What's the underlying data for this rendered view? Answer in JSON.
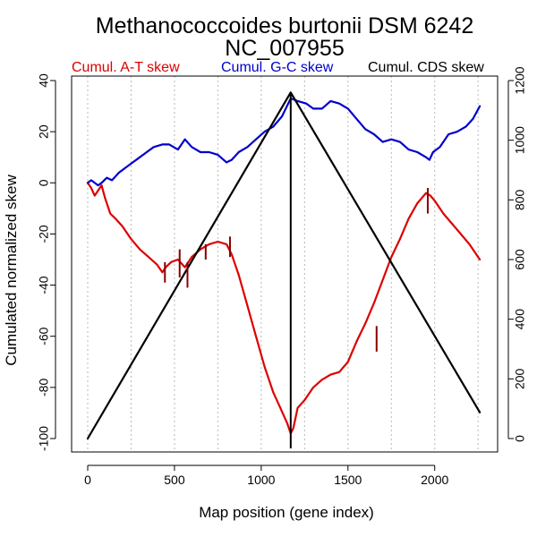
{
  "chart_data": {
    "type": "line",
    "title": "Methanococcoides burtonii DSM 6242",
    "subtitle": "NC_007955",
    "xlabel": "Map position (gene index)",
    "ylabel": "Cumulated normalized skew",
    "xlim": [
      0,
      2280
    ],
    "ylim": [
      -100,
      40
    ],
    "y2lim": [
      0,
      1200
    ],
    "x_ticks": [
      0,
      500,
      1000,
      1500,
      2000
    ],
    "y_ticks": [
      -100,
      -80,
      -60,
      -40,
      -20,
      0,
      20,
      40
    ],
    "y2_ticks": [
      0,
      200,
      400,
      600,
      800,
      1000,
      1200
    ],
    "vline_x": 1170,
    "legend": [
      {
        "label": "Cumul. A-T skew",
        "color": "#dd0000"
      },
      {
        "label": "Cumul. G-C skew",
        "color": "#0000cc"
      },
      {
        "label": "Cumul. CDS skew",
        "color": "#000000"
      }
    ],
    "series": [
      {
        "name": "Cumul. A-T skew",
        "axis": "left",
        "color": "#dd0000",
        "x": [
          0,
          20,
          40,
          60,
          80,
          100,
          130,
          160,
          200,
          250,
          300,
          350,
          400,
          430,
          450,
          480,
          520,
          560,
          600,
          650,
          700,
          750,
          800,
          830,
          870,
          920,
          970,
          1020,
          1070,
          1110,
          1150,
          1170,
          1185,
          1210,
          1250,
          1300,
          1350,
          1400,
          1450,
          1500,
          1550,
          1600,
          1650,
          1700,
          1750,
          1800,
          1850,
          1900,
          1950,
          1975,
          2000,
          2050,
          2100,
          2150,
          2200,
          2260
        ],
        "values": [
          0,
          -2,
          -5,
          -3,
          -1,
          -6,
          -12,
          -14,
          -17,
          -22,
          -26,
          -29,
          -32,
          -35,
          -33,
          -31,
          -30,
          -33,
          -29,
          -26,
          -24,
          -23,
          -24,
          -28,
          -36,
          -48,
          -60,
          -72,
          -82,
          -88,
          -94,
          -98,
          -96,
          -88,
          -85,
          -80,
          -77,
          -75,
          -74,
          -70,
          -62,
          -55,
          -47,
          -38,
          -29,
          -22,
          -14,
          -8,
          -4,
          -5,
          -7,
          -12,
          -16,
          -20,
          -24,
          -30
        ]
      },
      {
        "name": "Cumul. G-C skew",
        "axis": "left",
        "color": "#0000cc",
        "x": [
          0,
          20,
          40,
          60,
          80,
          110,
          140,
          180,
          220,
          260,
          300,
          340,
          380,
          430,
          470,
          520,
          560,
          600,
          650,
          700,
          750,
          800,
          830,
          870,
          920,
          970,
          1020,
          1070,
          1120,
          1170,
          1210,
          1260,
          1300,
          1350,
          1400,
          1450,
          1500,
          1550,
          1600,
          1650,
          1700,
          1750,
          1800,
          1850,
          1900,
          1950,
          1970,
          1990,
          2030,
          2080,
          2130,
          2180,
          2220,
          2260
        ],
        "values": [
          0,
          1,
          0,
          -1,
          0,
          2,
          1,
          4,
          6,
          8,
          10,
          12,
          14,
          15,
          15,
          13,
          17,
          14,
          12,
          12,
          11,
          8,
          9,
          12,
          14,
          17,
          20,
          22,
          26,
          33,
          32,
          31,
          29,
          29,
          32,
          31,
          29,
          25,
          21,
          19,
          16,
          17,
          16,
          13,
          12,
          10,
          9,
          12,
          14,
          19,
          20,
          22,
          25,
          30
        ]
      },
      {
        "name": "Cumul. CDS skew",
        "axis": "right",
        "color": "#000000",
        "x": [
          0,
          1170,
          2260
        ],
        "values": [
          0,
          1160,
          88
        ]
      }
    ],
    "spikes": [
      {
        "x": 445,
        "low": -39,
        "high": -31
      },
      {
        "x": 530,
        "low": -37,
        "high": -26
      },
      {
        "x": 575,
        "low": -41,
        "high": -31
      },
      {
        "x": 680,
        "low": -30,
        "high": -24
      },
      {
        "x": 820,
        "low": -29,
        "high": -21
      },
      {
        "x": 1665,
        "low": -66,
        "high": -56
      },
      {
        "x": 1960,
        "low": -12,
        "high": -2
      }
    ]
  }
}
